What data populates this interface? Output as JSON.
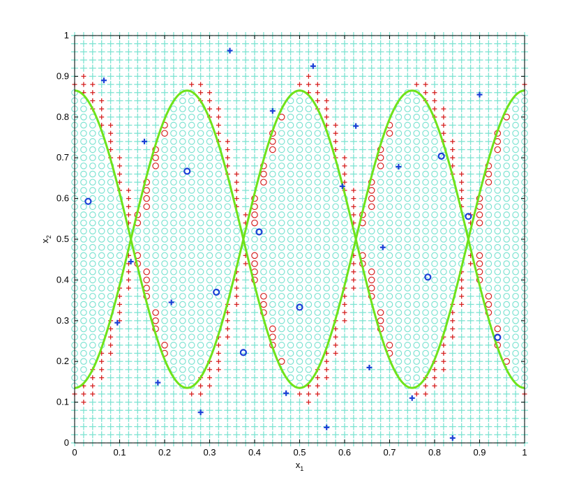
{
  "chart_data": {
    "type": "scatter",
    "title": "",
    "xlabel": "x",
    "xlabel_sub": "1",
    "ylabel": "x",
    "ylabel_sub": "2",
    "xlim": [
      0,
      1
    ],
    "ylim": [
      0,
      1
    ],
    "xticks": [
      "0",
      "0.1",
      "0.2",
      "0.3",
      "0.4",
      "0.5",
      "0.6",
      "0.7",
      "0.8",
      "0.9",
      "1"
    ],
    "yticks": [
      "0",
      "0.1",
      "0.2",
      "0.3",
      "0.4",
      "0.5",
      "0.6",
      "0.7",
      "0.8",
      "0.9",
      "1"
    ],
    "grid": false,
    "colors": {
      "grid_plus": "#7ee3d2",
      "grid_circle": "#7ee3d2",
      "misclassified": "#d42020",
      "samples": "#1a3fd6",
      "boundary": "#6fe31a"
    },
    "grid_step": 0.02,
    "decision_rule": "class-circle region bounded by x2 = 0.5 + 0.365 * sin(4*pi*x1 + pi/2) and x2 = 0.5 - 0.365 * sin(4*pi*x1 + pi/2)",
    "boundary_curves": [
      {
        "name": "upper",
        "x": [
          0,
          0.05,
          0.1,
          0.15,
          0.2,
          0.25,
          0.3,
          0.35,
          0.375,
          0.4,
          0.45,
          0.5,
          0.55,
          0.6,
          0.65,
          0.7,
          0.75,
          0.8,
          0.85,
          0.875,
          0.9,
          0.95,
          1.0
        ]
      },
      {
        "name": "lower"
      }
    ],
    "series": [
      {
        "marker": "plus",
        "x": [
          0.065,
          0.155,
          0.125,
          0.095,
          0.215,
          0.185,
          0.28,
          0.345,
          0.44,
          0.53,
          0.595,
          0.625,
          0.47,
          0.56,
          0.655,
          0.72,
          0.685,
          0.75,
          0.84,
          0.9
        ],
        "y": [
          0.89,
          0.74,
          0.445,
          0.295,
          0.345,
          0.148,
          0.075,
          0.963,
          0.815,
          0.925,
          0.63,
          0.778,
          0.122,
          0.038,
          0.185,
          0.678,
          0.48,
          0.11,
          0.012,
          0.855
        ]
      },
      {
        "marker": "circle",
        "x": [
          0.03,
          0.25,
          0.41,
          0.315,
          0.5,
          0.375,
          0.815,
          0.875,
          0.785,
          0.94
        ],
        "y": [
          0.593,
          0.667,
          0.518,
          0.37,
          0.333,
          0.222,
          0.704,
          0.556,
          0.407,
          0.259
        ]
      }
    ]
  }
}
